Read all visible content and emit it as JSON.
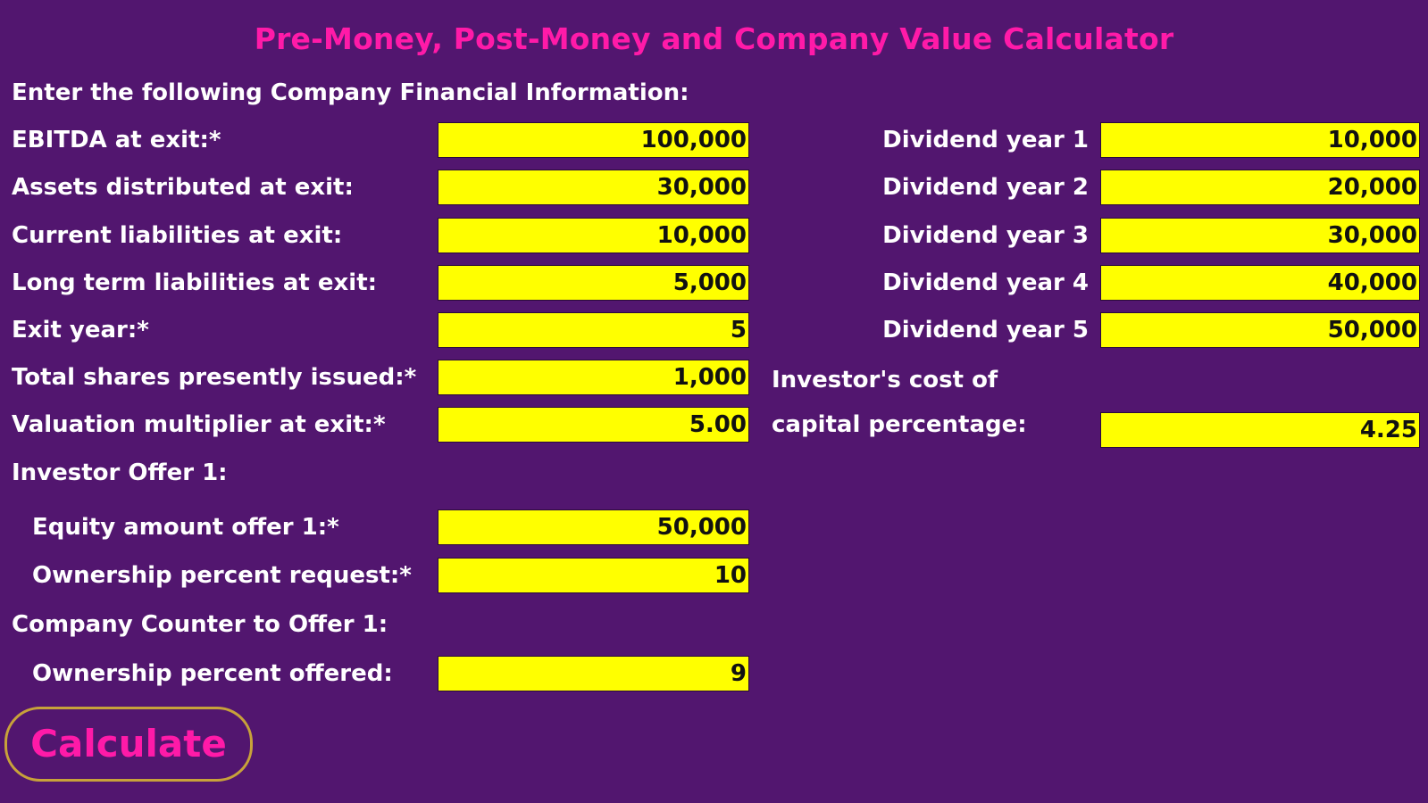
{
  "title": "Pre-Money, Post-Money and Company Value Calculator",
  "section_heading": "Enter the following Company Financial Information:",
  "left_fields": [
    {
      "label": "EBITDA at exit:*",
      "value": "100,000"
    },
    {
      "label": "Assets distributed at exit:",
      "value": "30,000"
    },
    {
      "label": "Current liabilities at exit:",
      "value": "10,000"
    },
    {
      "label": "Long term liabilities at exit:",
      "value": "5,000"
    },
    {
      "label": "Exit year:*",
      "value": "5"
    },
    {
      "label": "Total shares presently issued:*",
      "value": "1,000"
    },
    {
      "label": "Valuation multiplier at exit:*",
      "value": "5.00"
    }
  ],
  "dividends": [
    {
      "label": "Dividend year 1",
      "value": "10,000"
    },
    {
      "label": "Dividend year 2",
      "value": "20,000"
    },
    {
      "label": "Dividend year 3",
      "value": "30,000"
    },
    {
      "label": "Dividend year 4",
      "value": "40,000"
    },
    {
      "label": "Dividend year 5",
      "value": "50,000"
    }
  ],
  "cost_of_capital": {
    "label_line1": "Investor's cost of",
    "label_line2": "capital percentage:",
    "value": "4.25"
  },
  "offer1": {
    "heading": "Investor Offer 1:",
    "equity_label": "Equity amount offer 1:*",
    "equity_value": "50,000",
    "ownership_label": "Ownership percent request:*",
    "ownership_value": "10"
  },
  "counter": {
    "heading": "Company Counter to Offer 1:",
    "ownership_label": "Ownership percent offered:",
    "ownership_value": "9"
  },
  "calculate_label": "Calculate",
  "colors": {
    "background": "#52166f",
    "title": "#ff1aa8",
    "field": "#ffff00",
    "button_border": "#c8a23a"
  }
}
